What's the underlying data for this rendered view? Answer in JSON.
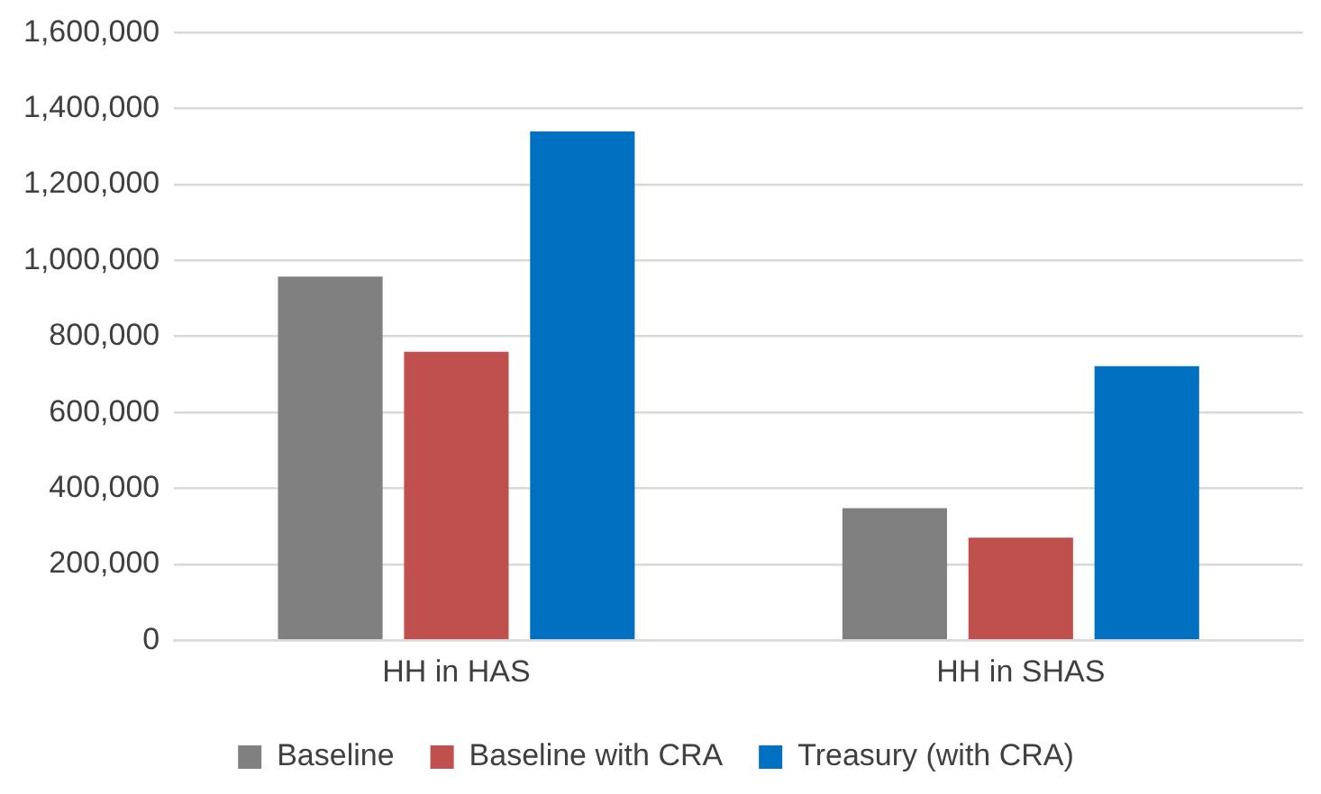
{
  "chart_data": {
    "type": "bar",
    "categories": [
      "HH in HAS",
      "HH in SHAS"
    ],
    "series": [
      {
        "name": "Baseline",
        "color": "#808080",
        "values": [
          958000,
          348000
        ]
      },
      {
        "name": "Baseline with CRA",
        "color": "#c0504d",
        "values": [
          760000,
          270000
        ]
      },
      {
        "name": "Treasury (with CRA)",
        "color": "#0070c0",
        "values": [
          1340000,
          722000
        ]
      }
    ],
    "ylim": [
      0,
      1600000
    ],
    "yticks": [
      {
        "value": 0,
        "label": "0"
      },
      {
        "value": 200000,
        "label": "200,000"
      },
      {
        "value": 400000,
        "label": "400,000"
      },
      {
        "value": 600000,
        "label": "600,000"
      },
      {
        "value": 800000,
        "label": "800,000"
      },
      {
        "value": 1000000,
        "label": "1,000,000"
      },
      {
        "value": 1200000,
        "label": "1,200,000"
      },
      {
        "value": 1400000,
        "label": "1,400,000"
      },
      {
        "value": 1600000,
        "label": "1,600,000"
      }
    ],
    "grid": "y",
    "legend": "bottom"
  }
}
